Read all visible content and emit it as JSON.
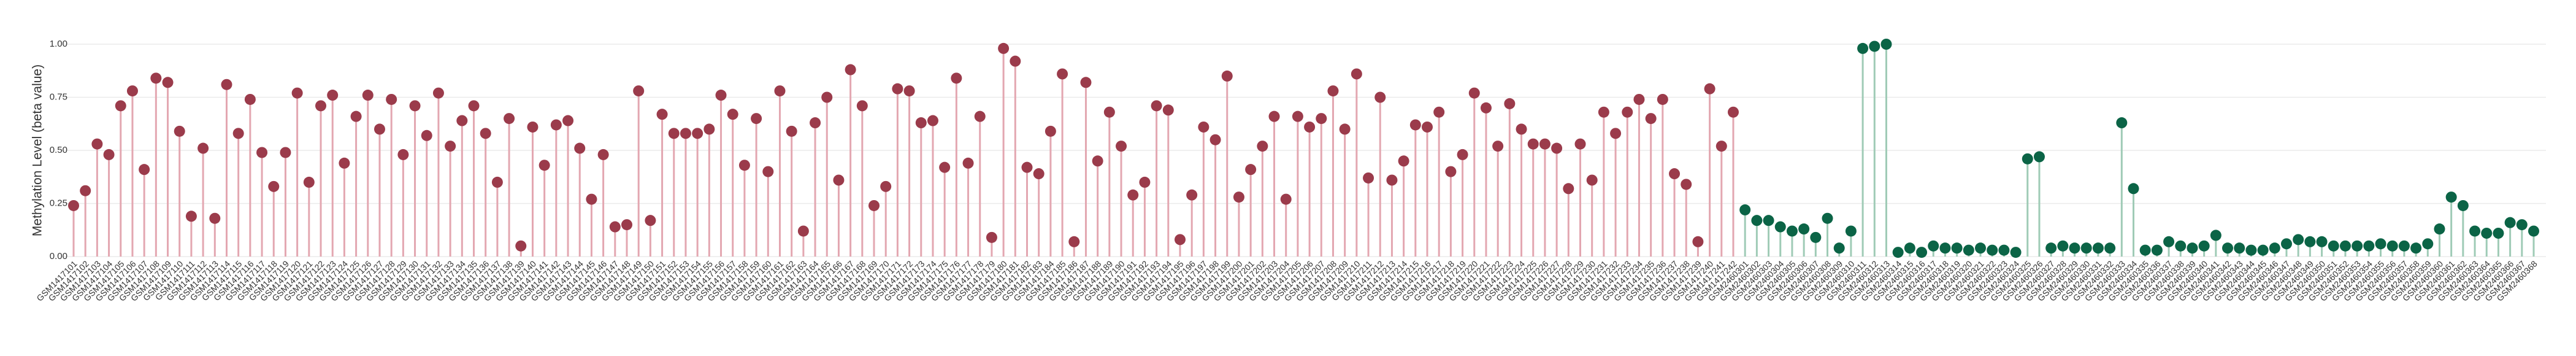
{
  "chart_data": {
    "type": "lollipop",
    "y_label": "Methylation Level (beta value)",
    "ylim": [
      0,
      1
    ],
    "yticks": [
      {
        "value": 0,
        "label": "0.00"
      },
      {
        "value": 0.25,
        "label": "0.25"
      },
      {
        "value": 0.5,
        "label": "0.50"
      },
      {
        "value": 0.75,
        "label": "0.75"
      },
      {
        "value": 1,
        "label": "1.00"
      }
    ],
    "grid": true,
    "series": [
      {
        "color": "#9b3b4b",
        "stem_color": "#e3a7b1",
        "categories": [
          "GSM1417101",
          "GSM1417102",
          "GSM1417103",
          "GSM1417104",
          "GSM1417105",
          "GSM1417106",
          "GSM1417107",
          "GSM1417108",
          "GSM1417109",
          "GSM1417110",
          "GSM1417111",
          "GSM1417112",
          "GSM1417113",
          "GSM1417114",
          "GSM1417115",
          "GSM1417116",
          "GSM1417117",
          "GSM1417118",
          "GSM1417119",
          "GSM1417120",
          "GSM1417121",
          "GSM1417122",
          "GSM1417123",
          "GSM1417124",
          "GSM1417125",
          "GSM1417126",
          "GSM1417127",
          "GSM1417128",
          "GSM1417129",
          "GSM1417130",
          "GSM1417131",
          "GSM1417132",
          "GSM1417133",
          "GSM1417134",
          "GSM1417135",
          "GSM1417136",
          "GSM1417137",
          "GSM1417138",
          "GSM1417139",
          "GSM1417140",
          "GSM1417141",
          "GSM1417142",
          "GSM1417143",
          "GSM1417144",
          "GSM1417145",
          "GSM1417146",
          "GSM1417147",
          "GSM1417148",
          "GSM1417149",
          "GSM1417150",
          "GSM1417151",
          "GSM1417152",
          "GSM1417153",
          "GSM1417154",
          "GSM1417155",
          "GSM1417156",
          "GSM1417157",
          "GSM1417158",
          "GSM1417159",
          "GSM1417160",
          "GSM1417161",
          "GSM1417162",
          "GSM1417163",
          "GSM1417164",
          "GSM1417165",
          "GSM1417166",
          "GSM1417167",
          "GSM1417168",
          "GSM1417169",
          "GSM1417170",
          "GSM1417171",
          "GSM1417172",
          "GSM1417173",
          "GSM1417174",
          "GSM1417175",
          "GSM1417176",
          "GSM1417177",
          "GSM1417178",
          "GSM1417179",
          "GSM1417180",
          "GSM1417181",
          "GSM1417182",
          "GSM1417183",
          "GSM1417184",
          "GSM1417185",
          "GSM1417186",
          "GSM1417187",
          "GSM1417188",
          "GSM1417189",
          "GSM1417190",
          "GSM1417191",
          "GSM1417192",
          "GSM1417193",
          "GSM1417194",
          "GSM1417195",
          "GSM1417196",
          "GSM1417197",
          "GSM1417198",
          "GSM1417199",
          "GSM1417200",
          "GSM1417201",
          "GSM1417202",
          "GSM1417203",
          "GSM1417204",
          "GSM1417205",
          "GSM1417206",
          "GSM1417207",
          "GSM1417208",
          "GSM1417209",
          "GSM1417210",
          "GSM1417211",
          "GSM1417212",
          "GSM1417213",
          "GSM1417214",
          "GSM1417215",
          "GSM1417216",
          "GSM1417217",
          "GSM1417218",
          "GSM1417219",
          "GSM1417220",
          "GSM1417221",
          "GSM1417222",
          "GSM1417223",
          "GSM1417224",
          "GSM1417225",
          "GSM1417226",
          "GSM1417227",
          "GSM1417228",
          "GSM1417229",
          "GSM1417230",
          "GSM1417231",
          "GSM1417232",
          "GSM1417233",
          "GSM1417234",
          "GSM1417235",
          "GSM1417236",
          "GSM1417237",
          "GSM1417238",
          "GSM1417239",
          "GSM1417240",
          "GSM1417241",
          "GSM1417242"
        ],
        "values": [
          0.24,
          0.31,
          0.53,
          0.48,
          0.71,
          0.78,
          0.41,
          0.84,
          0.82,
          0.59,
          0.19,
          0.51,
          0.18,
          0.81,
          0.58,
          0.74,
          0.49,
          0.33,
          0.49,
          0.77,
          0.35,
          0.71,
          0.76,
          0.44,
          0.66,
          0.76,
          0.6,
          0.74,
          0.48,
          0.71,
          0.57,
          0.77,
          0.52,
          0.64,
          0.71,
          0.58,
          0.35,
          0.65,
          0.05,
          0.61,
          0.43,
          0.62,
          0.64,
          0.51,
          0.27,
          0.48,
          0.14,
          0.15,
          0.78,
          0.17,
          0.67,
          0.58,
          0.58,
          0.58,
          0.6,
          0.76,
          0.67,
          0.43,
          0.65,
          0.4,
          0.78,
          0.59,
          0.12,
          0.63,
          0.75,
          0.36,
          0.88,
          0.71,
          0.24,
          0.33,
          0.79,
          0.78,
          0.63,
          0.64,
          0.42,
          0.84,
          0.44,
          0.66,
          0.09,
          0.98,
          0.92,
          0.42,
          0.39,
          0.59,
          0.86,
          0.07,
          0.82,
          0.45,
          0.68,
          0.52,
          0.29,
          0.35,
          0.71,
          0.69,
          0.08,
          0.29,
          0.61,
          0.55,
          0.85,
          0.28,
          0.41,
          0.52,
          0.66,
          0.27,
          0.66,
          0.61,
          0.65,
          0.78,
          0.6,
          0.86,
          0.37,
          0.75,
          0.36,
          0.45,
          0.62,
          0.61,
          0.68,
          0.4,
          0.48,
          0.77,
          0.7,
          0.52,
          0.72,
          0.6,
          0.53,
          0.53,
          0.51,
          0.32,
          0.53,
          0.36,
          0.68,
          0.58,
          0.68,
          0.74,
          0.65,
          0.74,
          0.39,
          0.34,
          0.07,
          0.79,
          0.52,
          0.68
        ]
      },
      {
        "color": "#0b6446",
        "stem_color": "#9fcbb6",
        "categories": [
          "GSM2460301",
          "GSM2460302",
          "GSM2460303",
          "GSM2460304",
          "GSM2460305",
          "GSM2460306",
          "GSM2460307",
          "GSM2460308",
          "GSM2460309",
          "GSM2460310",
          "GSM2460311",
          "GSM2460312",
          "GSM2460313",
          "GSM2460314",
          "GSM2460315",
          "GSM2460316",
          "GSM2460317",
          "GSM2460318",
          "GSM2460319",
          "GSM2460320",
          "GSM2460321",
          "GSM2460322",
          "GSM2460323",
          "GSM2460324",
          "GSM2460325",
          "GSM2460326",
          "GSM2460327",
          "GSM2460328",
          "GSM2460329",
          "GSM2460330",
          "GSM2460331",
          "GSM2460332",
          "GSM2460333",
          "GSM2460334",
          "GSM2460335",
          "GSM2460336",
          "GSM2460337",
          "GSM2460338",
          "GSM2460339",
          "GSM2460340",
          "GSM2460341",
          "GSM2460342",
          "GSM2460343",
          "GSM2460344",
          "GSM2460345",
          "GSM2460346",
          "GSM2460347",
          "GSM2460348",
          "GSM2460349",
          "GSM2460350",
          "GSM2460351",
          "GSM2460352",
          "GSM2460353",
          "GSM2460354",
          "GSM2460355",
          "GSM2460356",
          "GSM2460357",
          "GSM2460358",
          "GSM2460359",
          "GSM2460360",
          "GSM2460361",
          "GSM2460362",
          "GSM2460363",
          "GSM2460364",
          "GSM2460365",
          "GSM2460366",
          "GSM2460367",
          "GSM2460368"
        ],
        "values": [
          0.22,
          0.17,
          0.17,
          0.14,
          0.12,
          0.13,
          0.09,
          0.18,
          0.04,
          0.12,
          0.98,
          0.99,
          1.0,
          0.02,
          0.04,
          0.02,
          0.05,
          0.04,
          0.04,
          0.03,
          0.04,
          0.03,
          0.03,
          0.02,
          0.46,
          0.47,
          0.04,
          0.05,
          0.04,
          0.04,
          0.04,
          0.04,
          0.63,
          0.32,
          0.03,
          0.03,
          0.07,
          0.05,
          0.04,
          0.05,
          0.1,
          0.04,
          0.04,
          0.03,
          0.03,
          0.04,
          0.06,
          0.08,
          0.07,
          0.07,
          0.05,
          0.05,
          0.05,
          0.05,
          0.06,
          0.05,
          0.05,
          0.04,
          0.06,
          0.13,
          0.28,
          0.24,
          0.12,
          0.11,
          0.11,
          0.16,
          0.15,
          0.12
        ]
      }
    ]
  }
}
